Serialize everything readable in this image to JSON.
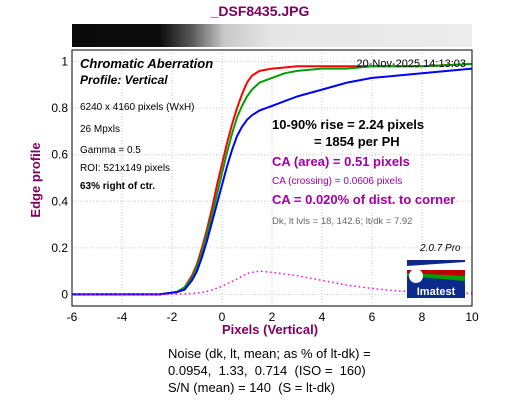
{
  "file_name": "_DSF8435.JPG",
  "chart_data": {
    "type": "line",
    "title": "Chromatic Aberration",
    "subtitle": "Profile: Vertical",
    "timestamp": "20-Nov-2025 14:13:03",
    "xlabel": "Pixels (Vertical)",
    "ylabel": "Edge profile",
    "xlim": [
      -6,
      10
    ],
    "ylim": [
      -0.05,
      1.05
    ],
    "x_ticks": [
      -6,
      -4,
      -2,
      0,
      2,
      4,
      6,
      8,
      10
    ],
    "y_ticks": [
      0,
      0.2,
      0.4,
      0.6,
      0.8,
      1
    ],
    "x_tick_labels": [
      "-6",
      "-4",
      "-2",
      "0",
      "2",
      "4",
      "6",
      "8",
      "10"
    ],
    "y_tick_labels": [
      "0",
      "0.2",
      "0.4",
      "0.6",
      "0.8",
      "1"
    ],
    "grid": true,
    "series": [
      {
        "color": "#ff0000",
        "style": "solid",
        "x": [
          -6,
          -4,
          -2.5,
          -1.8,
          -1.5,
          -1.2,
          -1,
          -0.8,
          -0.6,
          -0.4,
          -0.2,
          0,
          0.2,
          0.4,
          0.6,
          0.8,
          1,
          1.2,
          1.5,
          2,
          2.5,
          3,
          4,
          5,
          6,
          8,
          10
        ],
        "y": [
          0,
          0,
          0,
          0.01,
          0.03,
          0.08,
          0.13,
          0.2,
          0.28,
          0.37,
          0.47,
          0.56,
          0.65,
          0.73,
          0.8,
          0.86,
          0.91,
          0.94,
          0.96,
          0.97,
          0.975,
          0.98,
          0.98,
          0.98,
          0.98,
          0.98,
          0.99
        ]
      },
      {
        "color": "#00a000",
        "style": "solid",
        "x": [
          -6,
          -4,
          -2.5,
          -1.8,
          -1.5,
          -1.2,
          -1,
          -0.8,
          -0.6,
          -0.4,
          -0.2,
          0,
          0.2,
          0.4,
          0.6,
          0.8,
          1,
          1.2,
          1.5,
          2,
          2.5,
          3,
          4,
          5,
          6,
          8,
          10
        ],
        "y": [
          0,
          0,
          0,
          0.01,
          0.03,
          0.07,
          0.12,
          0.18,
          0.26,
          0.34,
          0.43,
          0.52,
          0.61,
          0.69,
          0.76,
          0.81,
          0.85,
          0.88,
          0.91,
          0.93,
          0.95,
          0.96,
          0.97,
          0.97,
          0.98,
          0.98,
          0.99
        ]
      },
      {
        "color": "#0000ff",
        "style": "solid",
        "x": [
          -6,
          -4,
          -2.5,
          -1.8,
          -1.5,
          -1.2,
          -1,
          -0.8,
          -0.6,
          -0.4,
          -0.2,
          0,
          0.2,
          0.4,
          0.6,
          0.8,
          1,
          1.2,
          1.5,
          2,
          2.5,
          3,
          4,
          5,
          6,
          8,
          10
        ],
        "y": [
          0,
          0,
          0,
          0.01,
          0.02,
          0.06,
          0.1,
          0.16,
          0.23,
          0.31,
          0.39,
          0.47,
          0.55,
          0.62,
          0.68,
          0.72,
          0.75,
          0.77,
          0.79,
          0.81,
          0.83,
          0.85,
          0.88,
          0.91,
          0.93,
          0.95,
          0.97
        ]
      },
      {
        "color": "#ff00ff",
        "style": "dotted",
        "x": [
          -6,
          -4,
          -2,
          -1,
          -0.5,
          0,
          0.5,
          1,
          1.5,
          2,
          3,
          4,
          5,
          6,
          7,
          8,
          10
        ],
        "y": [
          0,
          0,
          0,
          0.005,
          0.015,
          0.035,
          0.06,
          0.09,
          0.1,
          0.095,
          0.08,
          0.06,
          0.04,
          0.025,
          0.015,
          0.01,
          0.005
        ]
      }
    ],
    "annotations_left": [
      "6240 x 4160 pixels (WxH)",
      "26 Mpxls",
      "Gamma = 0.5",
      "ROI: 521x149 pixels",
      "63% right of ctr."
    ],
    "rise_line1": "10-90% rise = 2.24 pixels",
    "rise_line2": "= 1854 per PH",
    "ca_area": "CA (area) = 0.51 pixels",
    "ca_crossing": "CA (crossing) = 0.0606 pixels",
    "ca_corner": "CA = 0.020% of dist. to corner",
    "levels": "Dk, lt lvls = 18, 142.6;  lt/dk = 7.92",
    "version": "2.0.7  Pro",
    "logo_text": "Imatest"
  },
  "noise": {
    "line1": "Noise (dk, lt, mean; as % of lt-dk) =",
    "line2": "0.0954,  1.33,  0.714  (ISO =  160)",
    "line3": "S/N (mean) = 140  (S = lt-dk)"
  },
  "colors": {
    "title": "#800060",
    "ca_text": "#a000a0",
    "plot_frame": "#000000",
    "grid": "#c8c8c8"
  }
}
